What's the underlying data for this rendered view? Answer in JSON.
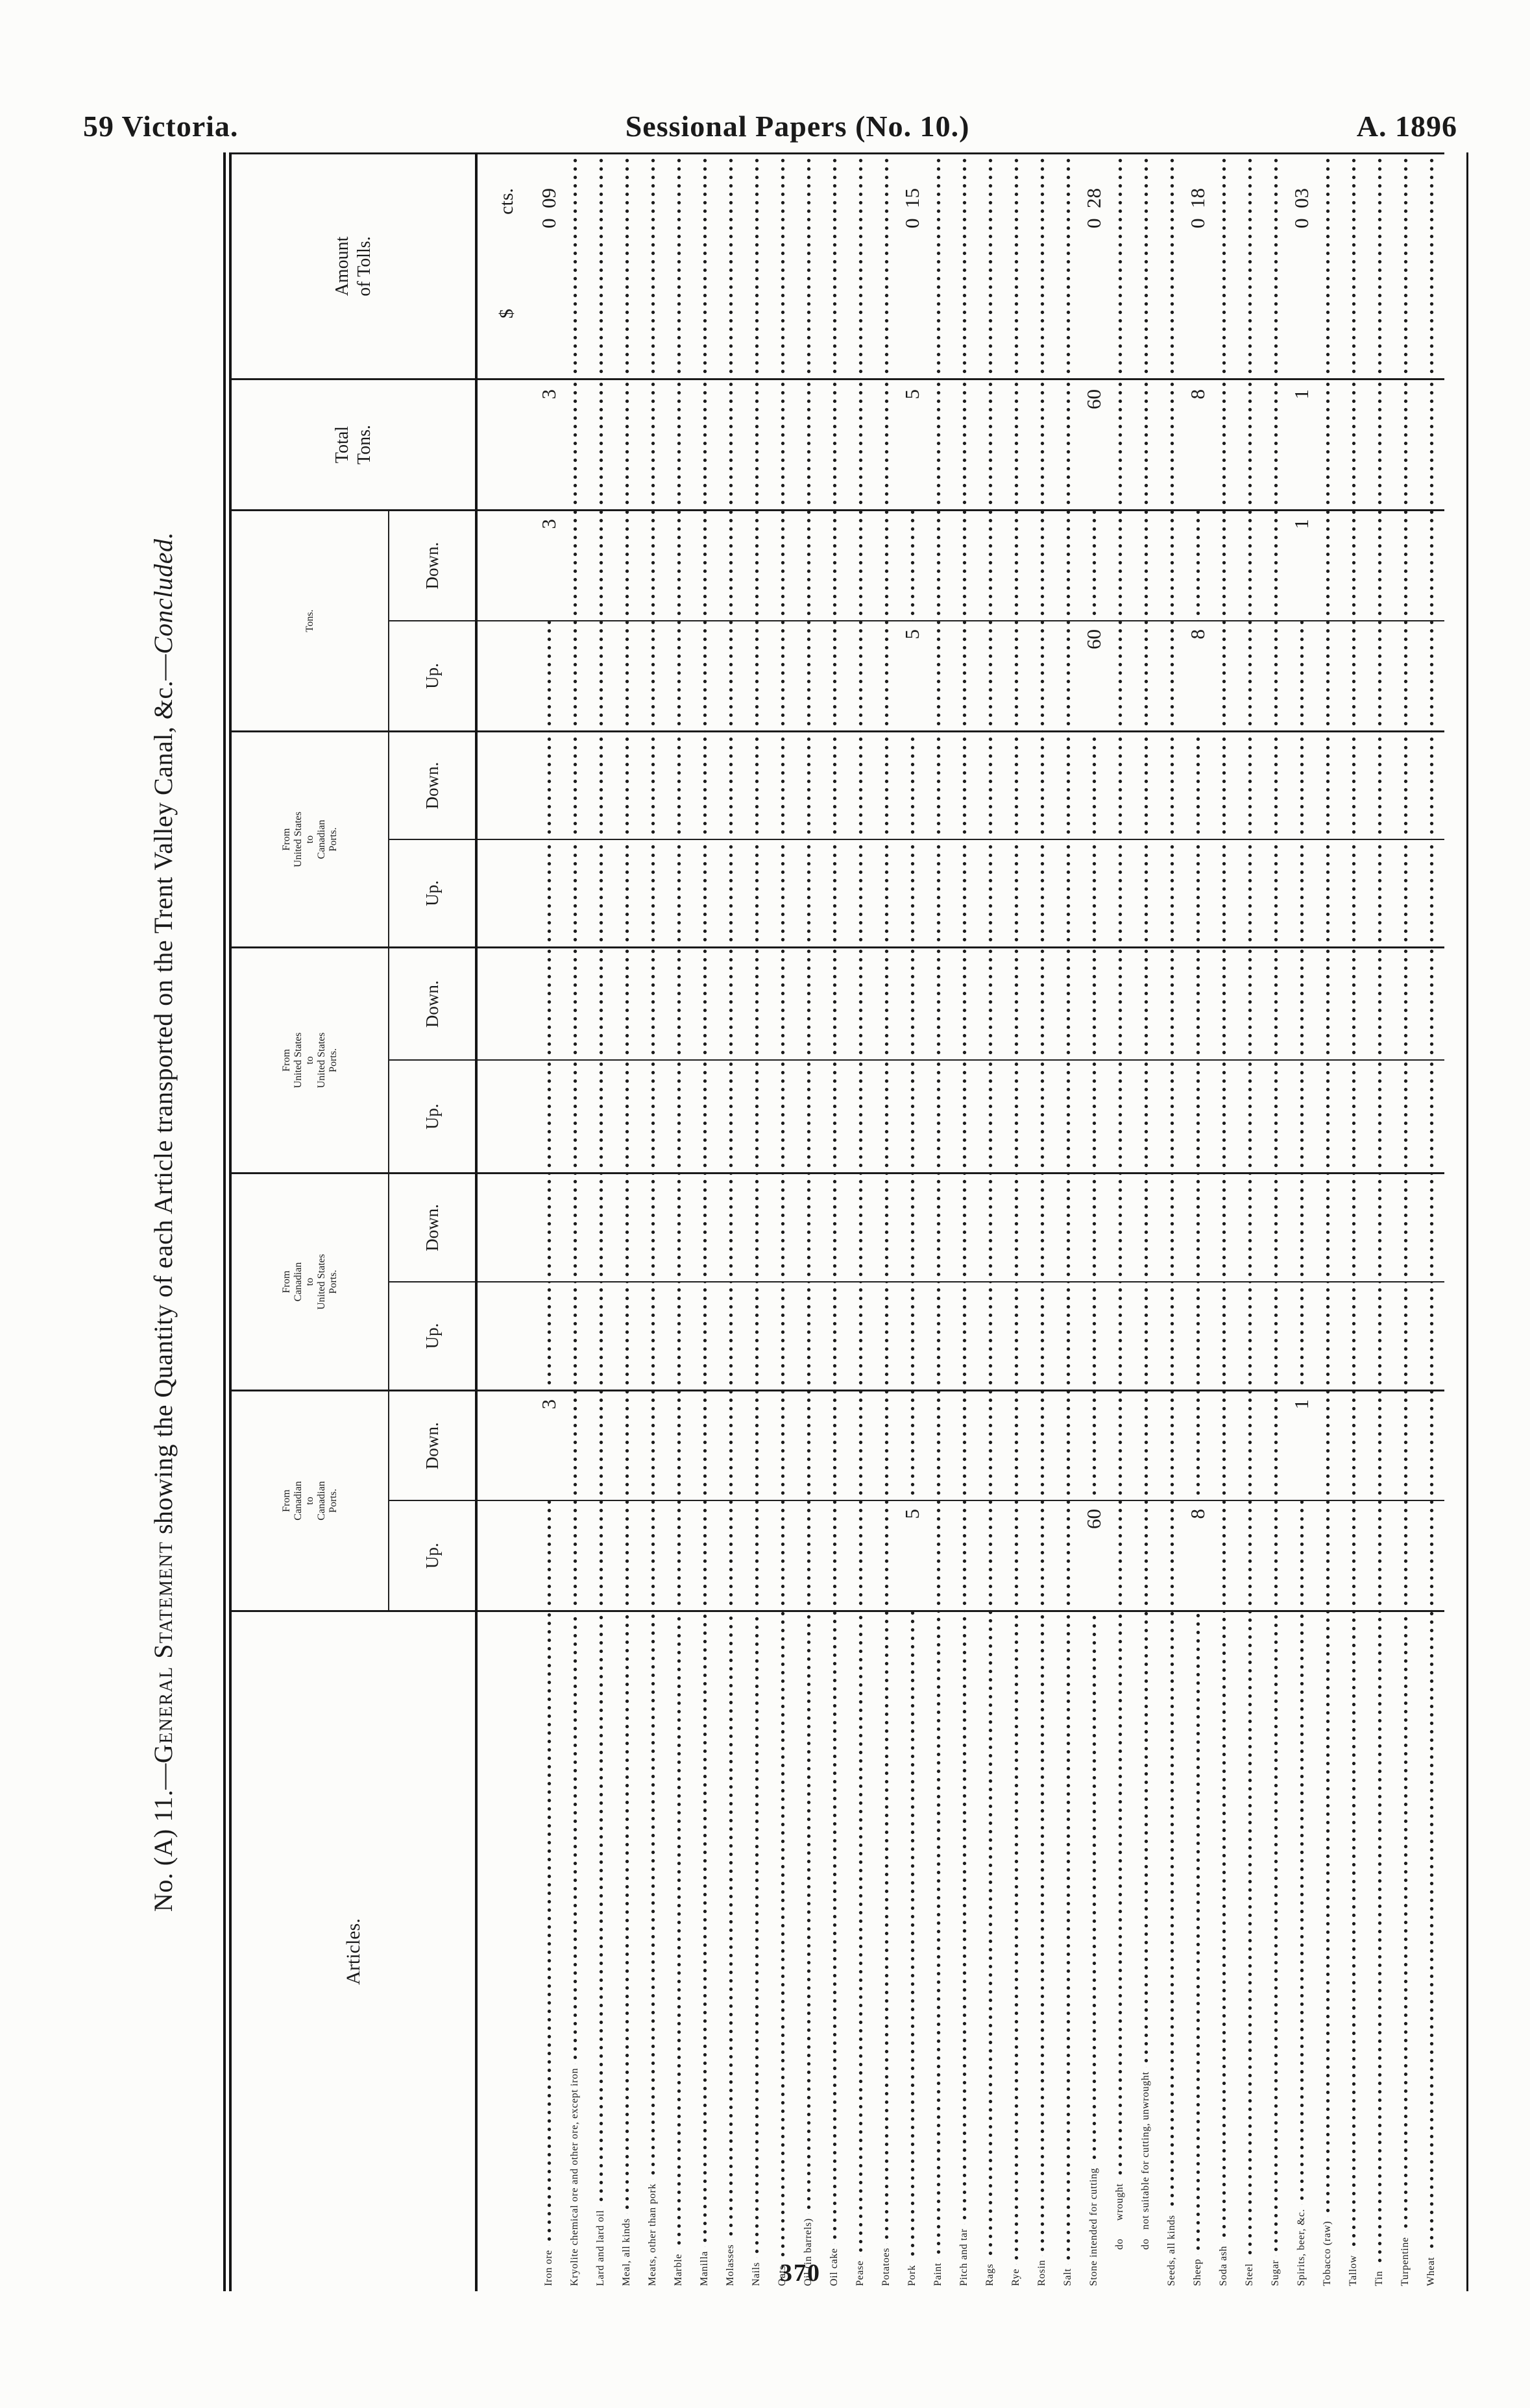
{
  "colors": {
    "ink": "#1a1a1a",
    "paper": "#fcfcfa"
  },
  "page_header": {
    "left": "59 Victoria.",
    "center": "Sessional Papers (No. 10.)",
    "right": "A. 1896"
  },
  "page_number": "370",
  "table": {
    "title": {
      "prefix": "No. (A) 11.—",
      "smallcaps": "General Statement",
      "mid": " showing the Quantity of each Article transported on the Trent Valley Canal, &c.—",
      "concluded": "Concluded."
    },
    "columns": {
      "articles_label": "Articles.",
      "groups": [
        {
          "id": "cc",
          "lines": [
            "From",
            "Canadian",
            "to",
            "Canadian",
            "Ports."
          ],
          "subs": [
            "Up.",
            "Down."
          ]
        },
        {
          "id": "cu",
          "lines": [
            "From",
            "Canadian",
            "to",
            "United States",
            "Ports."
          ],
          "subs": [
            "Up.",
            "Down."
          ]
        },
        {
          "id": "uu",
          "lines": [
            "From",
            "United States",
            "to",
            "United States",
            "Ports."
          ],
          "subs": [
            "Up.",
            "Down."
          ]
        },
        {
          "id": "uc",
          "lines": [
            "From",
            "United States",
            "to",
            "Canadian",
            "Ports."
          ],
          "subs": [
            "Up.",
            "Down."
          ]
        },
        {
          "id": "tons",
          "lines": [
            "Tons."
          ],
          "subs": [
            "Up.",
            "Down."
          ]
        }
      ],
      "total_lines": [
        "Total",
        "Tons."
      ],
      "amount_lines": [
        "Amount",
        "of Tolls."
      ],
      "units": {
        "dollar": "$",
        "cents": "cts."
      }
    },
    "rows": [
      {
        "name": "Iron ore",
        "values": {
          "cc_down": "3",
          "tons_down": "3",
          "total": "3",
          "amount": "0  09"
        }
      },
      {
        "name": "Kryolite chemical ore and other ore, except iron",
        "values": {}
      },
      {
        "name": "Lard and lard oil",
        "values": {}
      },
      {
        "name": "Meal, all kinds",
        "values": {}
      },
      {
        "name": "Meats, other than pork",
        "values": {}
      },
      {
        "name": "Marble",
        "values": {}
      },
      {
        "name": "Manilla",
        "values": {}
      },
      {
        "name": "Molasses",
        "values": {}
      },
      {
        "name": "Nails",
        "values": {}
      },
      {
        "name": "Oats",
        "values": {}
      },
      {
        "name": "Oil (in barrels)",
        "values": {}
      },
      {
        "name": "Oil cake",
        "values": {}
      },
      {
        "name": "Pease",
        "values": {}
      },
      {
        "name": "Potatoes",
        "values": {}
      },
      {
        "name": "Pork",
        "values": {
          "cc_up": "5",
          "tons_up": "5",
          "total": "5",
          "amount": "0  15"
        }
      },
      {
        "name": "Paint",
        "values": {}
      },
      {
        "name": "Pitch and tar",
        "values": {}
      },
      {
        "name": "Rags",
        "values": {}
      },
      {
        "name": "Rye",
        "values": {}
      },
      {
        "name": "Rosin",
        "values": {}
      },
      {
        "name": "Salt",
        "values": {}
      },
      {
        "name": "Stone intended for cutting",
        "values": {
          "cc_up": "60",
          "tons_up": "60",
          "total": "60",
          "amount": "0  28"
        }
      },
      {
        "name": "do      wrought",
        "indent": true,
        "values": {}
      },
      {
        "name": "do   not suitable for cutting, unwrought",
        "indent": true,
        "values": {}
      },
      {
        "name": "Seeds, all kinds",
        "values": {}
      },
      {
        "name": "Sheep",
        "values": {
          "cc_up": "8",
          "tons_up": "8",
          "total": "8",
          "amount": "0  18"
        }
      },
      {
        "name": "Soda ash",
        "values": {}
      },
      {
        "name": "Steel",
        "values": {}
      },
      {
        "name": "Sugar",
        "values": {}
      },
      {
        "name": "Spirits, beer, &c.",
        "values": {
          "cc_down": "1",
          "tons_down": "1",
          "total": "1",
          "amount": "0  03"
        }
      },
      {
        "name": "Tobacco (raw)",
        "values": {}
      },
      {
        "name": "Tallow",
        "values": {}
      },
      {
        "name": "Tin",
        "values": {}
      },
      {
        "name": "Turpentine",
        "values": {}
      },
      {
        "name": "Wheat",
        "values": {}
      }
    ]
  }
}
